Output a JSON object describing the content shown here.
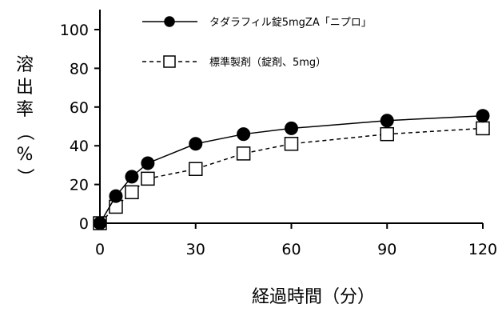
{
  "chart_data": {
    "type": "line",
    "xlabel": "経過時間（分）",
    "ylabel": [
      "溶",
      "出",
      "率",
      "（",
      "%",
      "）"
    ],
    "xlim": [
      0,
      120
    ],
    "ylim": [
      0,
      100
    ],
    "x_ticks": [
      0,
      30,
      60,
      90,
      120
    ],
    "y_ticks": [
      0,
      20,
      40,
      60,
      80,
      100
    ],
    "x_tick_labels": [
      "0",
      "30",
      "60",
      "90",
      "120"
    ],
    "y_tick_labels": [
      "0",
      "20",
      "40",
      "60",
      "80",
      "100"
    ],
    "grid": false,
    "legend_position": "top",
    "series": [
      {
        "name": "タダラフィル錠5mgZA「ニプロ」",
        "marker": "filled-circle",
        "line": "solid",
        "color": "#000000",
        "x": [
          0,
          5,
          10,
          15,
          30,
          45,
          60,
          90,
          120
        ],
        "y": [
          0,
          14,
          24,
          31,
          41,
          46,
          49,
          53,
          55.5
        ]
      },
      {
        "name": "標準製剤（錠剤、5mg）",
        "marker": "open-square",
        "line": "dashed",
        "color": "#000000",
        "x": [
          0,
          5,
          10,
          15,
          30,
          45,
          60,
          90,
          120
        ],
        "y": [
          0,
          8.5,
          16,
          23,
          28,
          36,
          41,
          46,
          49
        ]
      }
    ]
  }
}
